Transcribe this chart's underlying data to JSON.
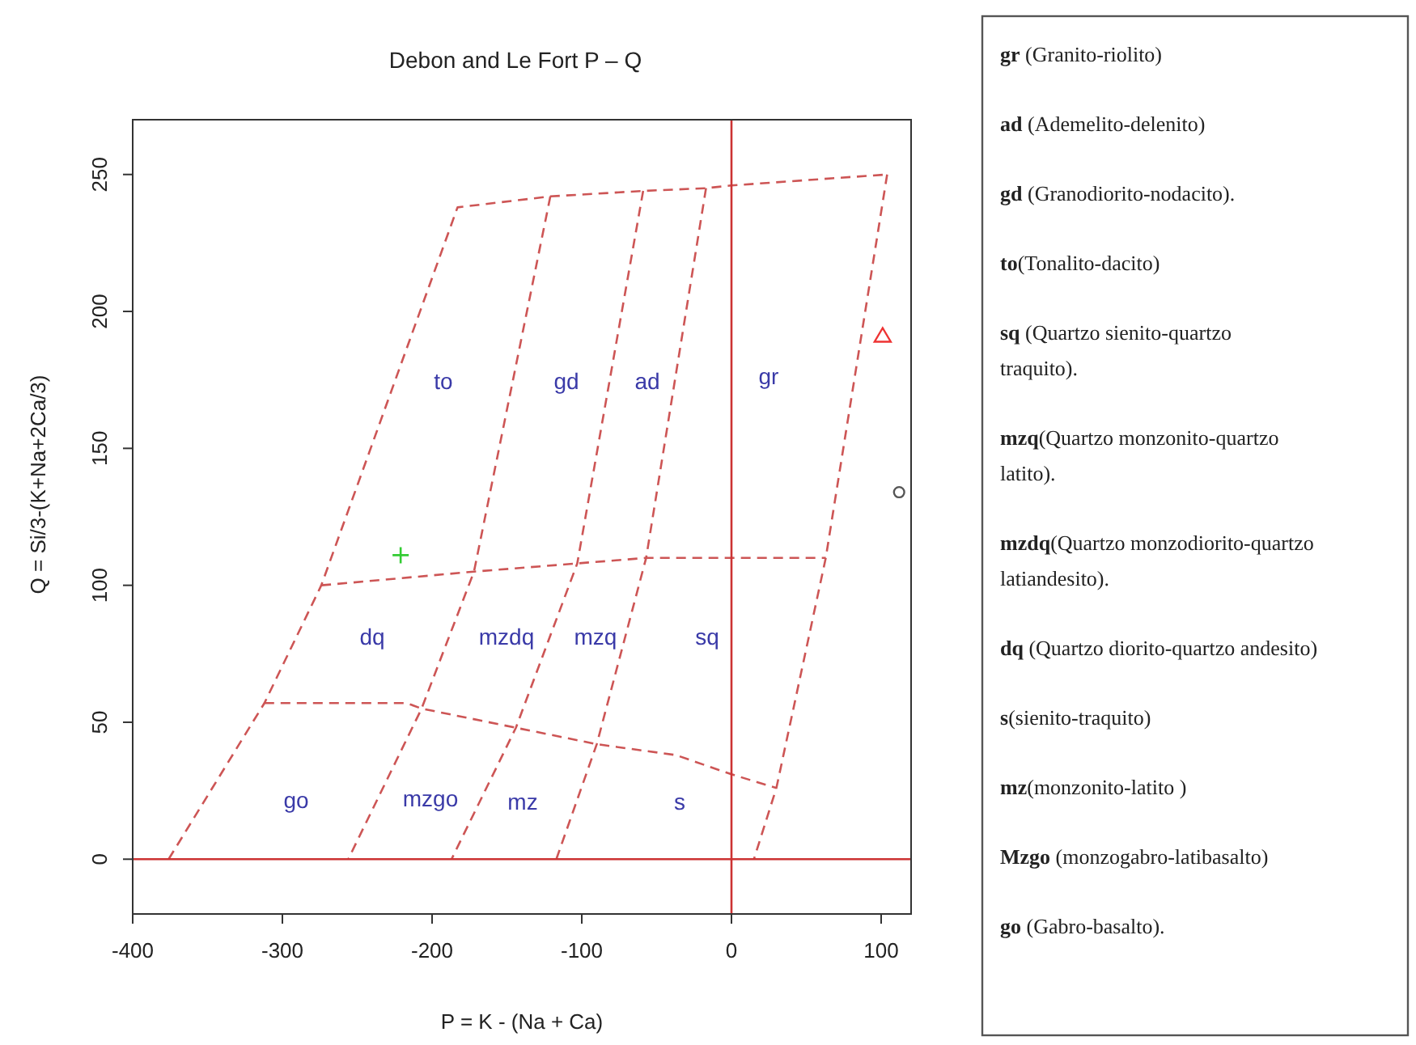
{
  "chart_data": {
    "type": "scatter",
    "title": "Debon and Le Fort P – Q",
    "xlabel": "P = K - (Na + Ca)",
    "ylabel": "Q = Si/3-(K+Na+2Ca/3)",
    "xlim": [
      -400,
      120
    ],
    "ylim": [
      -20,
      270
    ],
    "xticks": [
      -400,
      -300,
      -200,
      -100,
      0,
      100
    ],
    "yticks": [
      0,
      50,
      100,
      150,
      200,
      250
    ],
    "series": [
      {
        "type": "line",
        "color": "#cd5555",
        "line_style": "dashed",
        "marker": "none",
        "x": [
          -376,
          -312,
          -274,
          -183,
          -121,
          -59,
          -17,
          0,
          104
        ],
        "values": [
          0,
          57,
          100,
          238,
          242,
          244,
          245,
          246,
          250
        ]
      },
      {
        "type": "line",
        "color": "#cd5555",
        "line_style": "dashed",
        "marker": "none",
        "x": [
          104,
          63,
          30,
          15
        ],
        "values": [
          250,
          110,
          26,
          0
        ]
      },
      {
        "type": "line",
        "color": "#cd5555",
        "line_style": "dashed",
        "marker": "none",
        "x": [
          -121,
          -172,
          -207,
          -256
        ],
        "values": [
          242,
          105,
          55,
          0
        ]
      },
      {
        "type": "line",
        "color": "#cd5555",
        "line_style": "dashed",
        "marker": "none",
        "x": [
          -59,
          -103,
          -144,
          -187
        ],
        "values": [
          244,
          108,
          48,
          0
        ]
      },
      {
        "type": "line",
        "color": "#cd5555",
        "line_style": "dashed",
        "marker": "none",
        "x": [
          -17,
          -57,
          -90,
          -117
        ],
        "values": [
          245,
          110,
          42,
          0
        ]
      },
      {
        "type": "line",
        "color": "#cd5555",
        "line_style": "dashed",
        "marker": "none",
        "x": [
          -274,
          -172,
          -103,
          -57,
          -33,
          63
        ],
        "values": [
          100,
          105,
          108,
          110,
          110,
          110
        ]
      },
      {
        "type": "line",
        "color": "#cd5555",
        "line_style": "dashed",
        "marker": "none",
        "x": [
          -312,
          -217,
          -207,
          -144,
          -90,
          -37,
          0,
          30
        ],
        "values": [
          57,
          57,
          55,
          48,
          42,
          38,
          31,
          26
        ]
      },
      {
        "type": "line",
        "color": "#cc3333",
        "line_style": "solid",
        "marker": "none",
        "x": [
          0,
          0
        ],
        "values": [
          -20,
          270
        ]
      },
      {
        "type": "line",
        "color": "#cc3333",
        "line_style": "solid",
        "marker": "none",
        "x": [
          -400,
          120
        ],
        "values": [
          0,
          0
        ]
      },
      {
        "color": "#33cc33",
        "marker": "cross",
        "x": [
          -221
        ],
        "values": [
          111
        ]
      },
      {
        "color": "#ee3333",
        "marker": "triangle",
        "x": [
          101
        ],
        "values": [
          191
        ]
      },
      {
        "color": "#555555",
        "marker": "circle",
        "x": [
          112
        ],
        "values": [
          134
        ]
      }
    ],
    "annotations": [
      "to",
      "gd",
      "ad",
      "gr",
      "dq",
      "mzdq",
      "mzq",
      "sq",
      "go",
      "mzgo",
      "mz",
      "s",
      "gr (Granito-riolito)",
      "ad (Ademelito-delenito)",
      "gd (Granodiorito-nodacito).",
      "to(Tonalito-dacito)",
      "sq (Quartzo sienito-quartzo traquito).",
      "mzq(Quartzo monzonito-quartzo latito).",
      "mzdq(Quartzo monzodiorito-quartzo latiandesito).",
      "dq (Quartzo diorito-quartzo andesito)",
      "s(sienito-traquito)",
      "mz(monzonito-latito )",
      "Mzgo (monzogabro-latibasalto)",
      "go (Gabro-basalto)."
    ]
  }
}
